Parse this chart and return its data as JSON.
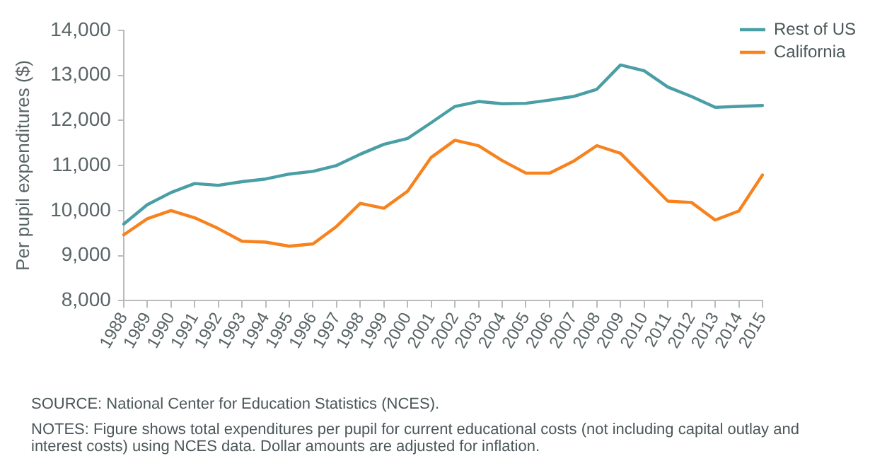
{
  "chart_data": {
    "type": "line",
    "ylabel": "Per pupil expenditures ($)",
    "categories": [
      "1988",
      "1989",
      "1990",
      "1991",
      "1992",
      "1993",
      "1994",
      "1995",
      "1996",
      "1997",
      "1998",
      "1999",
      "2000",
      "2001",
      "2002",
      "2003",
      "2004",
      "2005",
      "2006",
      "2007",
      "2008",
      "2009",
      "2010",
      "2011",
      "2012",
      "2013",
      "2014",
      "2015"
    ],
    "series": [
      {
        "name": "Rest of US",
        "color": "#4a9ea5",
        "values": [
          9700,
          10130,
          10400,
          10600,
          10560,
          10640,
          10700,
          10810,
          10870,
          11000,
          11250,
          11470,
          11600,
          11950,
          12310,
          12420,
          12370,
          12380,
          12450,
          12530,
          12690,
          13230,
          13100,
          12740,
          12530,
          12290,
          12310,
          12330
        ]
      },
      {
        "name": "California",
        "color": "#f7821e",
        "values": [
          9460,
          9820,
          10000,
          9840,
          9600,
          9320,
          9300,
          9210,
          9260,
          9650,
          10160,
          10050,
          10430,
          11180,
          11560,
          11440,
          11110,
          10830,
          10830,
          11090,
          11440,
          11270,
          10740,
          10210,
          10180,
          9790,
          9990,
          10790
        ]
      }
    ],
    "ylim": [
      8000,
      14000
    ],
    "yticks": [
      {
        "value": 8000,
        "label": "8,000"
      },
      {
        "value": 9000,
        "label": "9,000"
      },
      {
        "value": 10000,
        "label": "10,000"
      },
      {
        "value": 11000,
        "label": "11,000"
      },
      {
        "value": 12000,
        "label": "12,000"
      },
      {
        "value": 13000,
        "label": "13,000"
      },
      {
        "value": 14000,
        "label": "14,000"
      }
    ],
    "grid": false,
    "legend": "top right",
    "marker": "none",
    "line_style": "solid",
    "annotations": [
      "SOURCE: National Center for Education Statistics (NCES).",
      "NOTES: Figure shows total expenditures per pupil for current educational costs (not including capital outlay and interest costs) using NCES data. Dollar amounts are adjusted for inflation."
    ]
  }
}
